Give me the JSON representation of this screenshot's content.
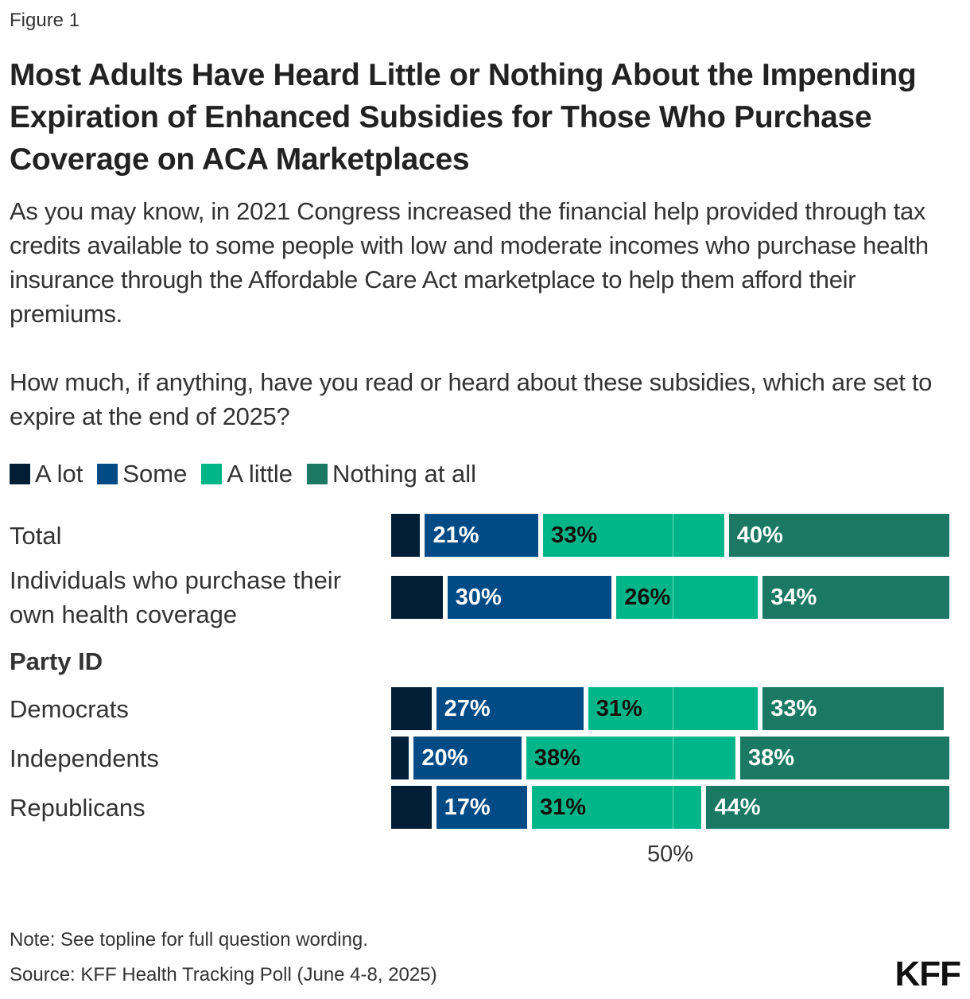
{
  "figure_label": "Figure 1",
  "title": "Most Adults Have Heard Little or Nothing About the Impending Expiration of Enhanced Subsidies for Those Who Purchase Coverage on ACA Marketplaces",
  "subtitle": [
    "As you may know, in 2021 Congress increased the financial help provided through tax credits available to some people with low and moderate incomes who purchase health insurance through the Affordable Care Act marketplace to help them afford their premiums.",
    "How much, if anything, have you read or heard about these subsidies, which are set to expire at the end of 2025?"
  ],
  "note": "Note: See topline for full question wording.",
  "source": "Source: KFF Health Tracking Poll (June 4-8, 2025)",
  "logo": "KFF",
  "chart_data": {
    "type": "bar",
    "orientation": "horizontal-stacked",
    "xlim": [
      0,
      100
    ],
    "ticks": [
      {
        "value": 50,
        "label": "50%"
      }
    ],
    "legend_position": "top-left",
    "categories": [
      "Total",
      "Individuals who purchase their own health coverage",
      "Party ID",
      "Democrats",
      "Independents",
      "Republicans"
    ],
    "group_header": "Party ID",
    "series": [
      {
        "name": "A lot",
        "color": "#021e36",
        "label_color": "#ffffff",
        "values": [
          6,
          10,
          null,
          8,
          4,
          8
        ],
        "labels": [
          "",
          "",
          "",
          "",
          "",
          ""
        ]
      },
      {
        "name": "Some",
        "color": "#004a85",
        "label_color": "#ffffff",
        "values": [
          21,
          30,
          null,
          27,
          20,
          17
        ],
        "labels": [
          "21%",
          "30%",
          "",
          "27%",
          "20%",
          "17%"
        ]
      },
      {
        "name": "A little",
        "color": "#00b587",
        "label_color": "#111111",
        "values": [
          33,
          26,
          null,
          31,
          38,
          31
        ],
        "labels": [
          "33%",
          "26%",
          "",
          "31%",
          "38%",
          "31%"
        ]
      },
      {
        "name": "Nothing at all",
        "color": "#1b7863",
        "label_color": "#ffffff",
        "values": [
          40,
          34,
          null,
          33,
          38,
          44
        ],
        "labels": [
          "40%",
          "34%",
          "",
          "33%",
          "38%",
          "44%"
        ]
      }
    ]
  }
}
